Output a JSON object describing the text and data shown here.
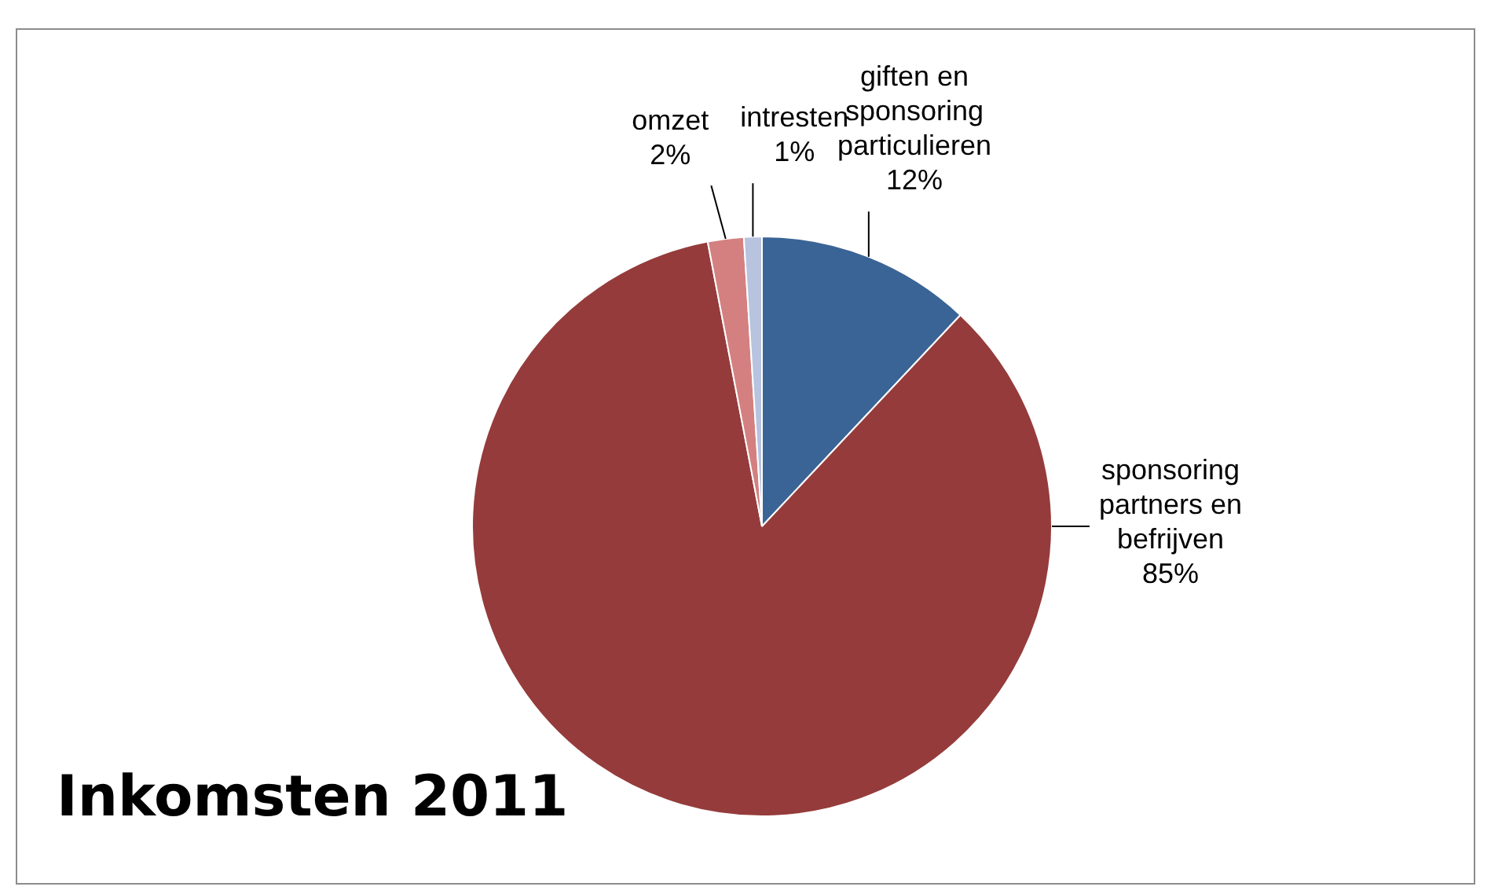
{
  "chart_data": {
    "type": "pie",
    "title": "Inkomsten 2011",
    "categories": [
      "giften en sponsoring particulieren",
      "sponsoring partners en befrijven",
      "omzet",
      "intresten"
    ],
    "values": [
      12,
      85,
      2,
      1
    ],
    "colors": [
      "#3a6496",
      "#953b3b",
      "#d48080",
      "#b7c3df"
    ],
    "value_labels": [
      "12%",
      "85%",
      "2%",
      "1%"
    ],
    "legend": false
  }
}
